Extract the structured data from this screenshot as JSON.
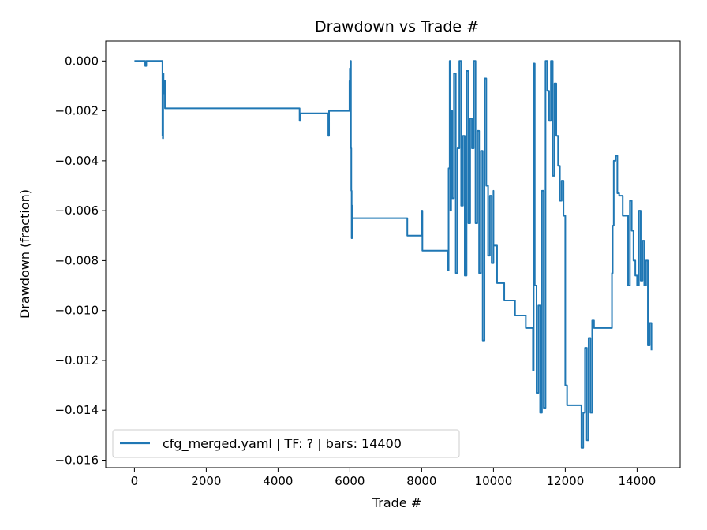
{
  "chart_data": {
    "type": "line",
    "title": "Drawdown vs Trade #",
    "xlabel": "Trade #",
    "ylabel": "Drawdown (fraction)",
    "xlim": [
      -800,
      15200
    ],
    "ylim": [
      -0.0163,
      0.0008
    ],
    "x_ticks": [
      0,
      2000,
      4000,
      6000,
      8000,
      10000,
      12000,
      14000
    ],
    "x_tick_labels": [
      "0",
      "2000",
      "4000",
      "6000",
      "8000",
      "10000",
      "12000",
      "14000"
    ],
    "y_ticks": [
      0,
      -0.002,
      -0.004,
      -0.006,
      -0.008,
      -0.01,
      -0.012,
      -0.014,
      -0.016
    ],
    "y_tick_labels": [
      "0.000",
      "−0.002",
      "−0.004",
      "−0.006",
      "−0.008",
      "−0.010",
      "−0.012",
      "−0.014",
      "−0.016"
    ],
    "grid": false,
    "legend_position": "lower-left",
    "line_color": "#1f77b4",
    "series": [
      {
        "name": "cfg_merged.yaml | TF: ? | bars: 14400",
        "x": [
          0,
          300,
          300,
          330,
          330,
          760,
          780,
          790,
          800,
          810,
          820,
          850,
          850,
          900,
          900,
          4600,
          4600,
          4620,
          4620,
          5400,
          5400,
          5420,
          5420,
          5980,
          5990,
          6000,
          6010,
          6020,
          6030,
          6040,
          6050,
          6060,
          6070,
          6080,
          6090,
          6100,
          7600,
          7600,
          8000,
          8000,
          8020,
          8020,
          8700,
          8720,
          8750,
          8780,
          8800,
          8820,
          8850,
          8900,
          8950,
          9000,
          9050,
          9100,
          9150,
          9200,
          9250,
          9300,
          9350,
          9400,
          9450,
          9500,
          9550,
          9600,
          9650,
          9700,
          9750,
          9800,
          9850,
          9900,
          9950,
          10000,
          10000,
          10100,
          10100,
          10300,
          10300,
          10600,
          10600,
          10900,
          10900,
          11000,
          11100,
          11120,
          11150,
          11200,
          11250,
          11300,
          11350,
          11400,
          11450,
          11500,
          11550,
          11600,
          11650,
          11700,
          11750,
          11800,
          11850,
          11900,
          11950,
          12000,
          12050,
          12100,
          12100,
          12400,
          12450,
          12500,
          12550,
          12600,
          12650,
          12700,
          12750,
          12800,
          13200,
          13250,
          13300,
          13320,
          13350,
          13400,
          13450,
          13500,
          13550,
          13600,
          13650,
          13700,
          13750,
          13800,
          13850,
          13900,
          13950,
          14000,
          14050,
          14100,
          14150,
          14200,
          14250,
          14300,
          14350,
          14400
        ],
        "y": [
          0,
          0,
          -0.0002,
          -0.0002,
          0,
          0,
          -0.003,
          -0.0031,
          -0.0005,
          -0.0013,
          -0.0008,
          -0.0008,
          -0.0019,
          -0.0019,
          -0.0019,
          -0.0019,
          -0.0024,
          -0.0021,
          -0.0021,
          -0.0021,
          -0.003,
          -0.002,
          -0.002,
          -0.002,
          -0.0008,
          -0.0003,
          -0.0005,
          0,
          -0.0035,
          -0.0052,
          -0.0071,
          -0.0058,
          -0.0063,
          -0.0063,
          -0.0063,
          -0.0063,
          -0.0063,
          -0.007,
          -0.007,
          -0.006,
          -0.0076,
          -0.0076,
          -0.0076,
          -0.0084,
          -0.0043,
          0,
          -0.006,
          -0.002,
          -0.0055,
          -0.0005,
          -0.0085,
          -0.0035,
          0,
          -0.0058,
          -0.003,
          -0.0086,
          -0.0004,
          -0.0065,
          -0.0023,
          -0.0035,
          0,
          -0.0065,
          -0.0028,
          -0.0085,
          -0.0036,
          -0.0112,
          -0.0007,
          -0.005,
          -0.0078,
          -0.0054,
          -0.0081,
          -0.0052,
          -0.0074,
          -0.0074,
          -0.0089,
          -0.0089,
          -0.0096,
          -0.0096,
          -0.0102,
          -0.0102,
          -0.0107,
          -0.0107,
          -0.0124,
          -0.0001,
          -0.009,
          -0.0133,
          -0.0098,
          -0.0141,
          -0.0052,
          -0.0139,
          0,
          -0.0012,
          -0.0024,
          0,
          -0.0046,
          -0.0009,
          -0.003,
          -0.0042,
          -0.0056,
          -0.0048,
          -0.0062,
          -0.013,
          -0.0138,
          -0.0138,
          -0.0138,
          -0.0138,
          -0.0155,
          -0.0141,
          -0.0115,
          -0.0152,
          -0.0111,
          -0.0141,
          -0.0104,
          -0.0107,
          -0.0107,
          -0.0107,
          -0.0085,
          -0.0066,
          -0.004,
          -0.0038,
          -0.0053,
          -0.0054,
          -0.0054,
          -0.0062,
          -0.0062,
          -0.0062,
          -0.009,
          -0.0056,
          -0.0068,
          -0.008,
          -0.0086,
          -0.009,
          -0.006,
          -0.0088,
          -0.0072,
          -0.009,
          -0.008,
          -0.0114,
          -0.0105,
          -0.0116
        ]
      }
    ]
  }
}
